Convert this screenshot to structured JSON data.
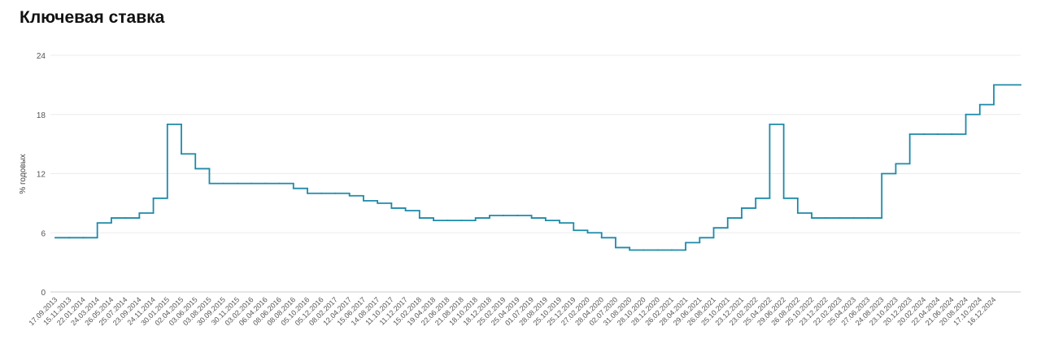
{
  "chart_data": {
    "type": "line",
    "title": "Ключевая ставка",
    "y_label": "% годовых",
    "categories": [
      "17.09.2013",
      "15.11.2013",
      "22.01.2014",
      "24.03.2014",
      "26.05.2014",
      "25.07.2014",
      "23.09.2014",
      "24.11.2014",
      "30.01.2015",
      "02.04.2015",
      "03.06.2015",
      "03.08.2015",
      "30.09.2015",
      "30.11.2015",
      "03.02.2016",
      "06.04.2016",
      "08.06.2016",
      "08.08.2016",
      "05.10.2016",
      "05.12.2016",
      "08.02.2017",
      "12.04.2017",
      "15.06.2017",
      "14.08.2017",
      "11.10.2017",
      "11.12.2017",
      "15.02.2018",
      "19.04.2018",
      "22.06.2018",
      "21.08.2018",
      "18.10.2018",
      "18.12.2018",
      "25.02.2019",
      "25.04.2019",
      "01.07.2019",
      "28.08.2019",
      "25.10.2019",
      "25.12.2019",
      "27.02.2020",
      "28.04.2020",
      "02.07.2020",
      "31.08.2020",
      "28.10.2020",
      "28.12.2020",
      "26.02.2021",
      "28.04.2021",
      "29.06.2021",
      "26.08.2021",
      "25.10.2021",
      "23.12.2021",
      "23.02.2022",
      "25.04.2022",
      "29.06.2022",
      "26.08.2022",
      "25.10.2022",
      "23.12.2022",
      "22.02.2023",
      "25.04.2023",
      "27.06.2023",
      "24.08.2023",
      "23.10.2023",
      "20.12.2023",
      "20.02.2024",
      "22.04.2024",
      "21.06.2024",
      "20.08.2024",
      "17.10.2024",
      "16.12.2024"
    ],
    "values": [
      5.5,
      5.5,
      5.5,
      7,
      7.5,
      7.5,
      8,
      9.5,
      17,
      14,
      12.5,
      11,
      11,
      11,
      11,
      11,
      11,
      10.5,
      10,
      10,
      10,
      9.75,
      9.25,
      9,
      8.5,
      8.25,
      7.5,
      7.25,
      7.25,
      7.25,
      7.5,
      7.75,
      7.75,
      7.75,
      7.5,
      7.25,
      7,
      6.25,
      6,
      5.5,
      4.5,
      4.25,
      4.25,
      4.25,
      4.25,
      5,
      5.5,
      6.5,
      7.5,
      8.5,
      9.5,
      17,
      9.5,
      8,
      7.5,
      7.5,
      7.5,
      7.5,
      7.5,
      12,
      13,
      16,
      16,
      16,
      16,
      18,
      19,
      21
    ],
    "color": "#1e8aa9",
    "step": true,
    "ylim": [
      0,
      24
    ],
    "yticks": [
      0,
      6,
      12,
      18,
      24
    ],
    "grid": true
  }
}
